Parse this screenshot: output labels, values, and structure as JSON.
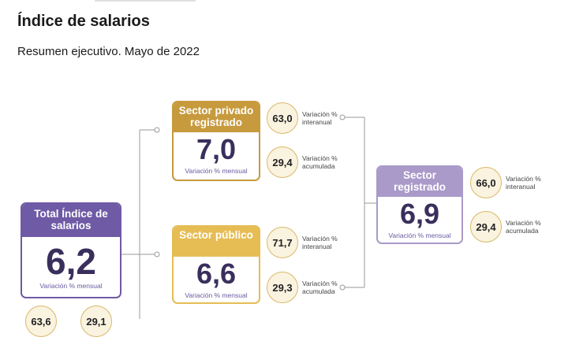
{
  "header": {
    "title": "Índice de salarios",
    "subtitle": "Resumen ejecutivo. Mayo de 2022"
  },
  "colors": {
    "gold": "#c79a3d",
    "light_gold": "#e6bd55",
    "purple": "#6e5aa5",
    "light_purple": "#a99ac9",
    "connector": "#999999"
  },
  "total": {
    "title": "Total Índice de salarios",
    "value": "6,2",
    "caption": "Variación % mensual",
    "interanual": "63,6",
    "acumulada": "29,1"
  },
  "privado": {
    "title": "Sector privado registrado",
    "value": "7,0",
    "caption": "Variación % mensual",
    "interanual": "63,0",
    "interanual_label": "Variación % interanual",
    "acumulada": "29,4",
    "acumulada_label": "Variación % acumulada"
  },
  "publico": {
    "title": "Sector público",
    "value": "6,6",
    "caption": "Variación % mensual",
    "interanual": "71,7",
    "interanual_label": "Variación % interanual",
    "acumulada": "29,3",
    "acumulada_label": "Variación % acumulada"
  },
  "registrado": {
    "title": "Sector registrado",
    "value": "6,9",
    "caption": "Variación % mensual",
    "interanual": "66,0",
    "interanual_label": "Variación % interanual",
    "acumulada": "29,4",
    "acumulada_label": "Variación % acumulada"
  }
}
